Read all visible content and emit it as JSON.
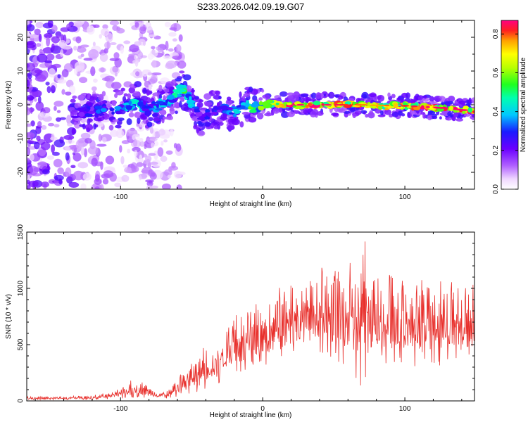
{
  "title": "S233.2026.042.09.19.G07",
  "chart_data": [
    {
      "type": "heatmap",
      "name": "spectrogram",
      "xlabel": "Height of straight line (km)",
      "ylabel": "Frequency (Hz)",
      "xlim": [
        -166,
        149
      ],
      "ylim": [
        -25,
        25
      ],
      "xticks": [
        -100,
        0,
        100
      ],
      "yticks": [
        -20,
        -10,
        0,
        10,
        20
      ],
      "colorbar": {
        "label": "Normalized spectral amplitude",
        "range": [
          0.0,
          0.87
        ],
        "ticks": [
          0.0,
          0.2,
          0.4,
          0.6,
          0.8
        ],
        "tick_labels": [
          "0.0",
          "0.2",
          "0.4",
          "0.6",
          "0.8"
        ]
      },
      "ridge_trace": {
        "x": [
          -130,
          -120,
          -110,
          -100,
          -92,
          -88,
          -84,
          -80,
          -75,
          -70,
          -65,
          -60,
          -56,
          -52,
          -48,
          -45,
          -42,
          -38,
          -34,
          -30,
          -25,
          -20,
          -15,
          -10,
          -5,
          0,
          5,
          10,
          20,
          30,
          40,
          50,
          60,
          70,
          80,
          90,
          100,
          110,
          120,
          130,
          140,
          148
        ],
        "freq": [
          -2.5,
          -2,
          -1.5,
          -1,
          0,
          1,
          -0.5,
          -1.5,
          -0.5,
          0.5,
          1.5,
          3.5,
          5,
          2,
          -1,
          -3,
          -4.5,
          -2.5,
          -1.5,
          -1,
          -1.5,
          -2,
          -0.5,
          0,
          -1,
          -0.5,
          0.5,
          0,
          0,
          0,
          0,
          0,
          0,
          0,
          -0.2,
          -0.2,
          -0.3,
          -0.5,
          -0.8,
          -1,
          -1.5,
          -1.8
        ],
        "amplitude": [
          0.25,
          0.3,
          0.35,
          0.4,
          0.45,
          0.5,
          0.35,
          0.35,
          0.4,
          0.4,
          0.45,
          0.5,
          0.55,
          0.45,
          0.35,
          0.3,
          0.3,
          0.3,
          0.3,
          0.3,
          0.35,
          0.4,
          0.5,
          0.55,
          0.55,
          0.6,
          0.65,
          0.7,
          0.85,
          0.87,
          0.85,
          0.87,
          0.8,
          0.78,
          0.75,
          0.8,
          0.82,
          0.85,
          0.87,
          0.85,
          0.87,
          0.85
        ]
      }
    },
    {
      "type": "line",
      "name": "snr",
      "xlabel": "Height of straight line (km)",
      "ylabel": "SNR (10 * v/v)",
      "xlim": [
        -166,
        149
      ],
      "ylim": [
        0,
        1500
      ],
      "xticks": [
        -100,
        0,
        100
      ],
      "yticks": [
        0,
        500,
        1000,
        1500
      ],
      "color": "#e8302c",
      "series": [
        {
          "name": "SNR",
          "envelope_x": [
            -166,
            -140,
            -120,
            -110,
            -100,
            -95,
            -90,
            -85,
            -80,
            -75,
            -70,
            -65,
            -60,
            -55,
            -50,
            -45,
            -40,
            -35,
            -30,
            -25,
            -20,
            -15,
            -10,
            -5,
            0,
            5,
            10,
            15,
            20,
            25,
            30,
            35,
            40,
            45,
            50,
            55,
            60,
            65,
            70,
            75,
            80,
            85,
            90,
            95,
            100,
            105,
            110,
            115,
            120,
            125,
            130,
            135,
            140,
            145,
            149
          ],
          "envelope_max": [
            40,
            40,
            50,
            70,
            110,
            160,
            220,
            200,
            140,
            90,
            100,
            120,
            220,
            300,
            380,
            420,
            540,
            500,
            620,
            700,
            780,
            820,
            800,
            900,
            880,
            860,
            1000,
            1050,
            1100,
            1050,
            1120,
            1150,
            1200,
            1150,
            1180,
            1200,
            1250,
            1300,
            1500,
            1320,
            1250,
            1150,
            1180,
            1100,
            1150,
            1050,
            1100,
            1150,
            1050,
            1120,
            1050,
            1100,
            1020,
            1080,
            1050
          ],
          "envelope_min": [
            10,
            10,
            10,
            15,
            20,
            25,
            30,
            30,
            25,
            20,
            20,
            25,
            30,
            40,
            60,
            80,
            100,
            120,
            150,
            200,
            230,
            250,
            270,
            280,
            300,
            300,
            350,
            380,
            400,
            420,
            430,
            430,
            400,
            380,
            350,
            300,
            250,
            200,
            100,
            250,
            300,
            320,
            300,
            320,
            330,
            300,
            320,
            300,
            320,
            300,
            330,
            300,
            310,
            300,
            380
          ]
        }
      ]
    }
  ]
}
